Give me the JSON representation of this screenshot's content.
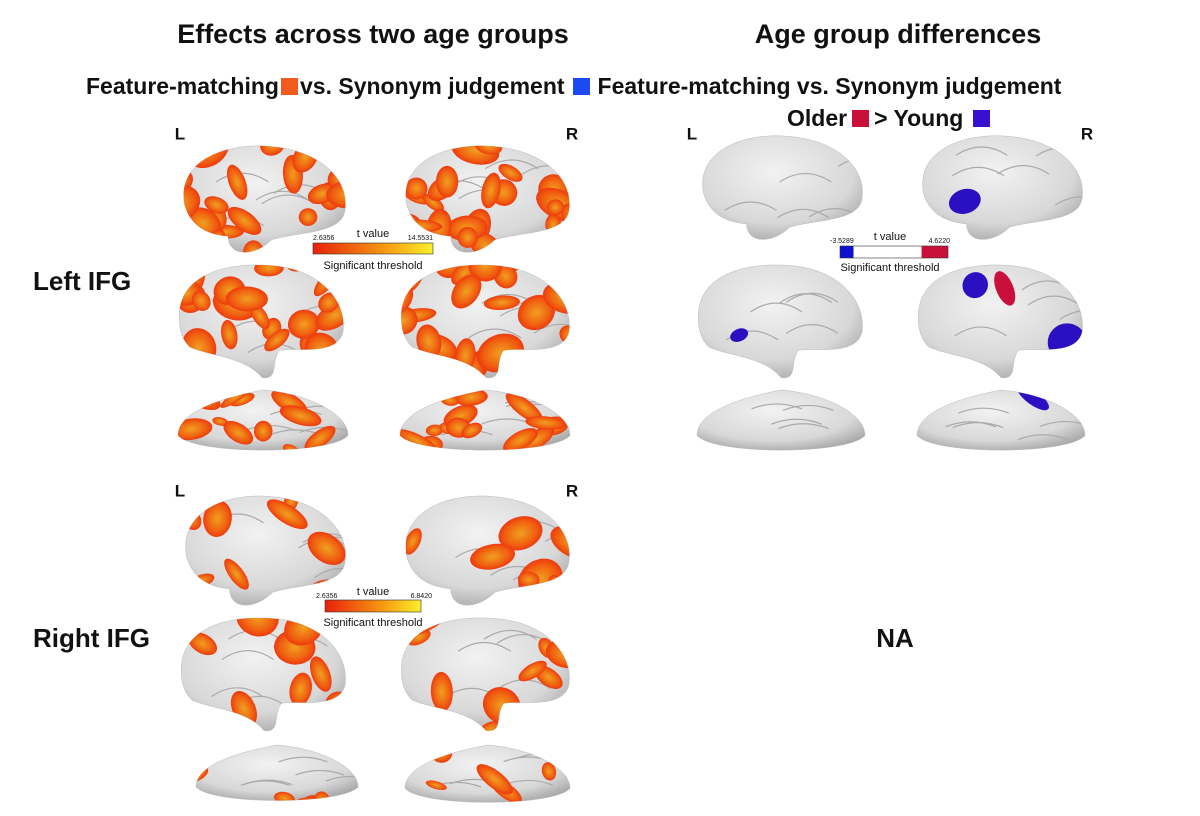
{
  "titles": {
    "left": "Effects across two age groups",
    "right": "Age group differences"
  },
  "legend": {
    "row1": [
      "Feature-matching",
      "vs. Synonym judgement",
      "Feature-matching vs. Synonym judgement"
    ],
    "row2": [
      "Older",
      "> Young"
    ]
  },
  "hemispheres": {
    "left": "L",
    "right": "R"
  },
  "rows": [
    {
      "label": "Left IFG"
    },
    {
      "label": "Right IFG"
    }
  ],
  "colorbars": [
    {
      "title": "t value",
      "min": "2.6356",
      "max": "14.5531",
      "caption": "Significant threshold"
    },
    {
      "title": "t value",
      "min": "-3.5289",
      "max": "4.6220",
      "caption": "Significant threshold"
    },
    {
      "title": "t value",
      "min": "2.6356",
      "max": "6.8420",
      "caption": "Significant threshold"
    }
  ],
  "empty_panel": "NA"
}
